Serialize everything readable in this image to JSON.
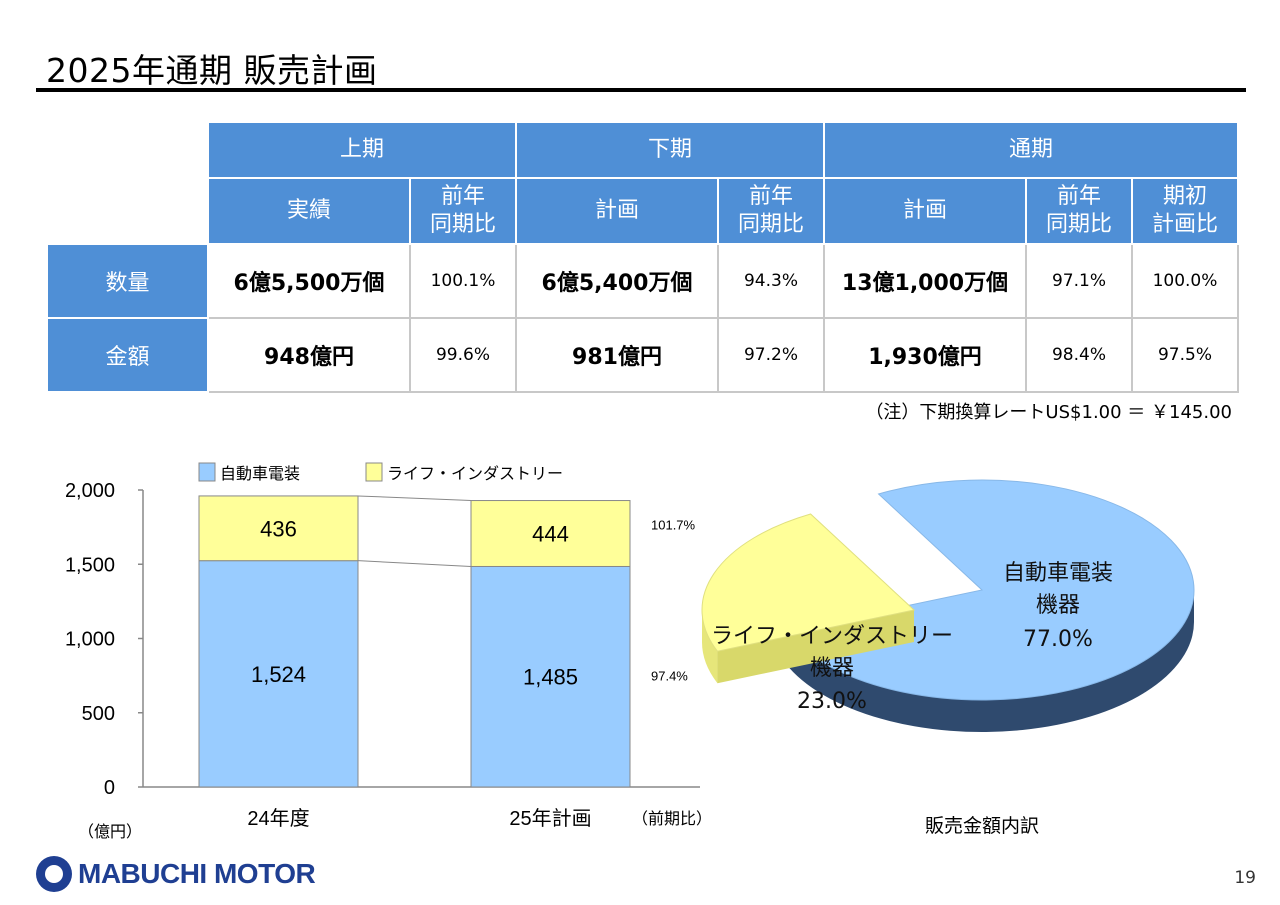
{
  "title": "2025年通期 販売計画",
  "table": {
    "group_headers": [
      "上期",
      "下期",
      "通期"
    ],
    "sub_headers": {
      "jisseki": "実績",
      "zennen1": "前年",
      "zennen2": "同期比",
      "keikaku": "計画",
      "kishoki1": "期初",
      "kishoki2": "計画比"
    },
    "rows": [
      {
        "label": "数量",
        "h1_value": "6億5,500万個",
        "h1_ratio": "100.1%",
        "h2_value": "6億5,400万個",
        "h2_ratio": "94.3%",
        "fy_value": "13億1,000万個",
        "fy_ratio": "97.1%",
        "fy_plan_ratio": "100.0%"
      },
      {
        "label": "金額",
        "h1_value": "948億円",
        "h1_ratio": "99.6%",
        "h2_value": "981億円",
        "h2_ratio": "97.2%",
        "fy_value": "1,930億円",
        "fy_ratio": "98.4%",
        "fy_plan_ratio": "97.5%"
      }
    ]
  },
  "note": "（注）下期換算レートUS$1.00 ＝ ￥145.00",
  "chart_data": [
    {
      "type": "bar",
      "stacked": true,
      "categories": [
        "24年度",
        "25年計画"
      ],
      "series": [
        {
          "name": "自動車電装",
          "values": [
            1524,
            1485
          ],
          "color": "#99ccff"
        },
        {
          "name": "ライフ・インダストリー",
          "values": [
            436,
            444
          ],
          "color": "#ffff99"
        }
      ],
      "ylim": [
        0,
        2000
      ],
      "yticks": [
        0,
        500,
        1000,
        1500,
        2000
      ],
      "ytick_labels": [
        "0",
        "500",
        "1,000",
        "1,500",
        "2,000"
      ],
      "unit_label": "（億円）",
      "ratio_header": "（前期比）",
      "ratios": {
        "ライフ・インダストリー": "101.7%",
        "自動車電装": "97.4%"
      },
      "bar_labels": {
        "自動車電装": [
          "1,524",
          "1,485"
        ],
        "ライフ・インダストリー": [
          "436",
          "444"
        ]
      },
      "legend_position": "top"
    },
    {
      "type": "pie",
      "title": "販売金額内訳",
      "slices": [
        {
          "name_line1": "自動車電装",
          "name_line2": "機器",
          "value": 77.0,
          "label": "77.0%",
          "color": "#99ccff"
        },
        {
          "name_line1": "ライフ・インダストリー",
          "name_line2": "機器",
          "value": 23.0,
          "label": "23.0%",
          "color": "#ffff99"
        }
      ]
    }
  ],
  "logo_text": "MABUCHI MOTOR",
  "page_number": "19"
}
